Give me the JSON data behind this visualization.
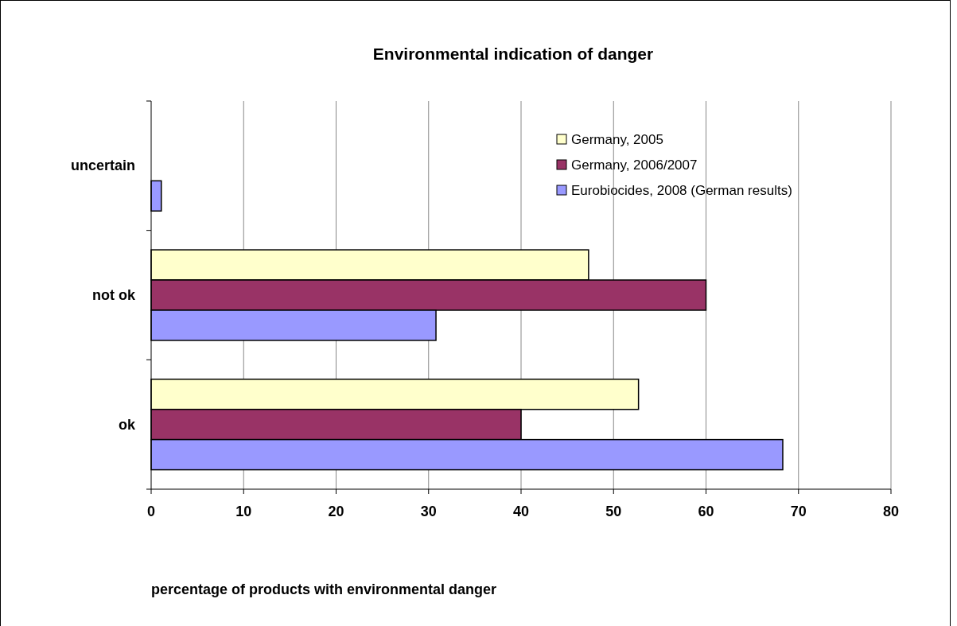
{
  "chart_data": {
    "type": "bar",
    "orientation": "horizontal",
    "title": "Environmental indication of danger",
    "xlabel": "percentage of products with environmental danger",
    "categories": [
      "uncertain",
      "not ok",
      "ok"
    ],
    "series": [
      {
        "name": "Germany, 2005",
        "color": "#ffffcc",
        "values": [
          null,
          47.3,
          52.7
        ]
      },
      {
        "name": "Germany, 2006/2007",
        "color": "#993366",
        "values": [
          null,
          60,
          40
        ]
      },
      {
        "name": "Eurobiocides, 2008 (German results)",
        "color": "#9999ff",
        "values": [
          1.1,
          30.8,
          68.3
        ]
      }
    ],
    "xlim": [
      0,
      80
    ],
    "xticks": [
      0,
      10,
      20,
      30,
      40,
      50,
      60,
      70,
      80
    ],
    "grid": "x",
    "legend": "top right"
  }
}
